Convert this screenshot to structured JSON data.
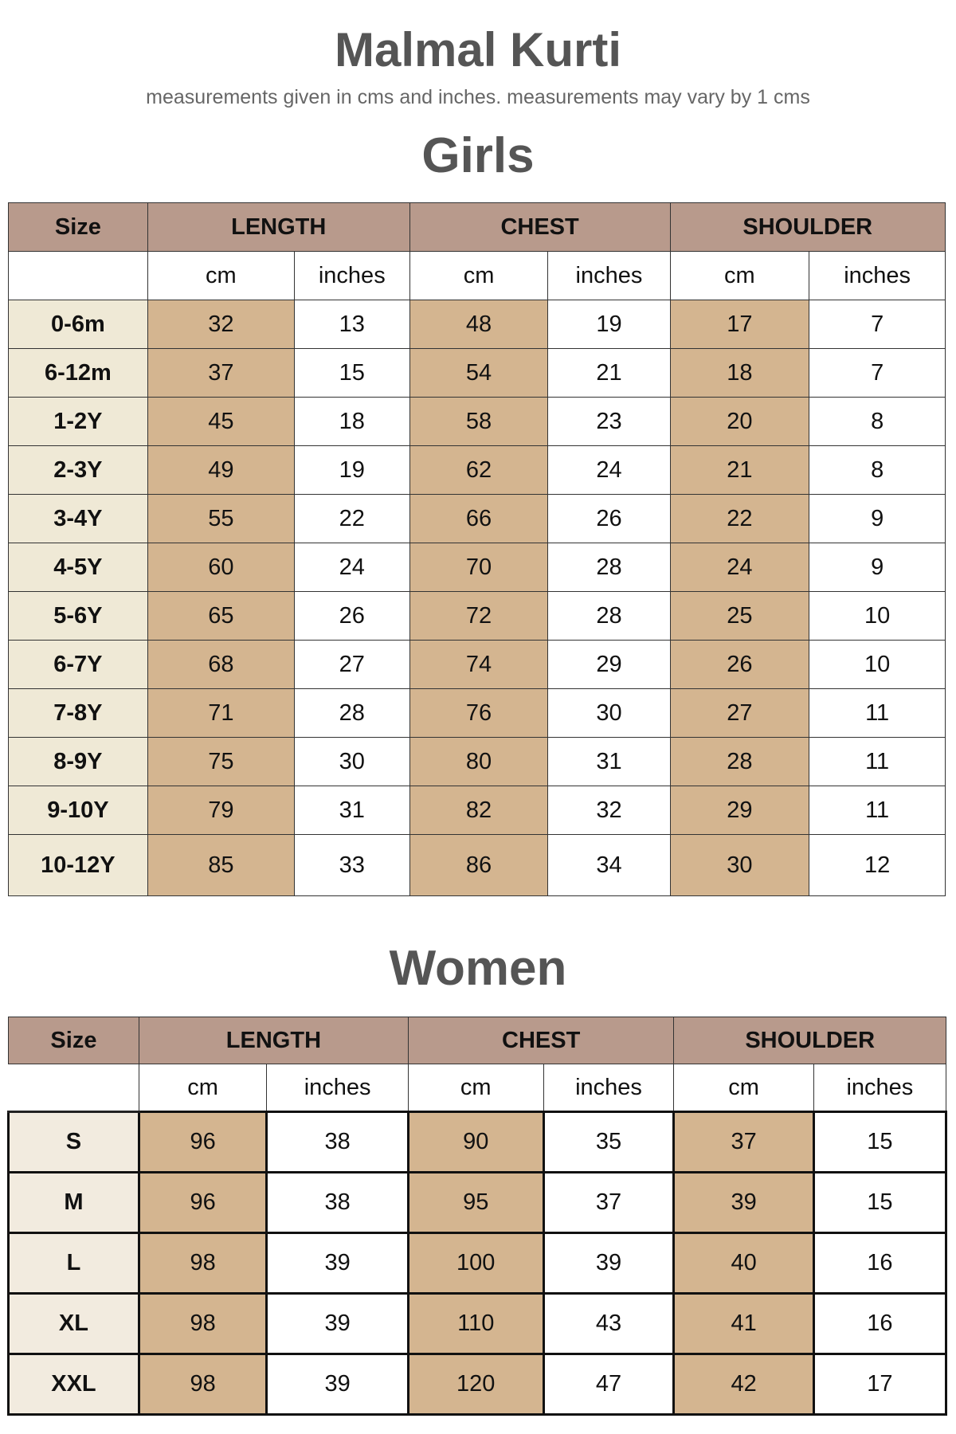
{
  "title": "Malmal Kurti",
  "subtitle": "measurements given in cms and inches. measurements may vary  by 1 cms",
  "colors": {
    "header": "#b89a8c",
    "cm_column": "#d4b590",
    "size_column_girls": "#efe9d6",
    "size_column_women": "#f2ebdf",
    "heading_text": "#555555"
  },
  "girls": {
    "title": "Girls",
    "headers": [
      "Size",
      "LENGTH",
      "CHEST",
      "SHOULDER"
    ],
    "units": [
      "cm",
      "inches",
      "cm",
      "inches",
      "cm",
      "inches"
    ],
    "rows": [
      [
        "0-6m",
        "32",
        "13",
        "48",
        "19",
        "17",
        "7"
      ],
      [
        "6-12m",
        "37",
        "15",
        "54",
        "21",
        "18",
        "7"
      ],
      [
        "1-2Y",
        "45",
        "18",
        "58",
        "23",
        "20",
        "8"
      ],
      [
        "2-3Y",
        "49",
        "19",
        "62",
        "24",
        "21",
        "8"
      ],
      [
        "3-4Y",
        "55",
        "22",
        "66",
        "26",
        "22",
        "9"
      ],
      [
        "4-5Y",
        "60",
        "24",
        "70",
        "28",
        "24",
        "9"
      ],
      [
        "5-6Y",
        "65",
        "26",
        "72",
        "28",
        "25",
        "10"
      ],
      [
        "6-7Y",
        "68",
        "27",
        "74",
        "29",
        "26",
        "10"
      ],
      [
        "7-8Y",
        "71",
        "28",
        "76",
        "30",
        "27",
        "11"
      ],
      [
        "8-9Y",
        "75",
        "30",
        "80",
        "31",
        "28",
        "11"
      ],
      [
        "9-10Y",
        "79",
        "31",
        "82",
        "32",
        "29",
        "11"
      ],
      [
        "10-12Y",
        "85",
        "33",
        "86",
        "34",
        "30",
        "12"
      ]
    ]
  },
  "women": {
    "title": "Women",
    "headers": [
      "Size",
      "LENGTH",
      "CHEST",
      "SHOULDER"
    ],
    "units": [
      "cm",
      "inches",
      "cm",
      "inches",
      "cm",
      "inches"
    ],
    "rows": [
      [
        "S",
        "96",
        "38",
        "90",
        "35",
        "37",
        "15"
      ],
      [
        "M",
        "96",
        "38",
        "95",
        "37",
        "39",
        "15"
      ],
      [
        "L",
        "98",
        "39",
        "100",
        "39",
        "40",
        "16"
      ],
      [
        "XL",
        "98",
        "39",
        "110",
        "43",
        "41",
        "16"
      ],
      [
        "XXL",
        "98",
        "39",
        "120",
        "47",
        "42",
        "17"
      ]
    ]
  }
}
